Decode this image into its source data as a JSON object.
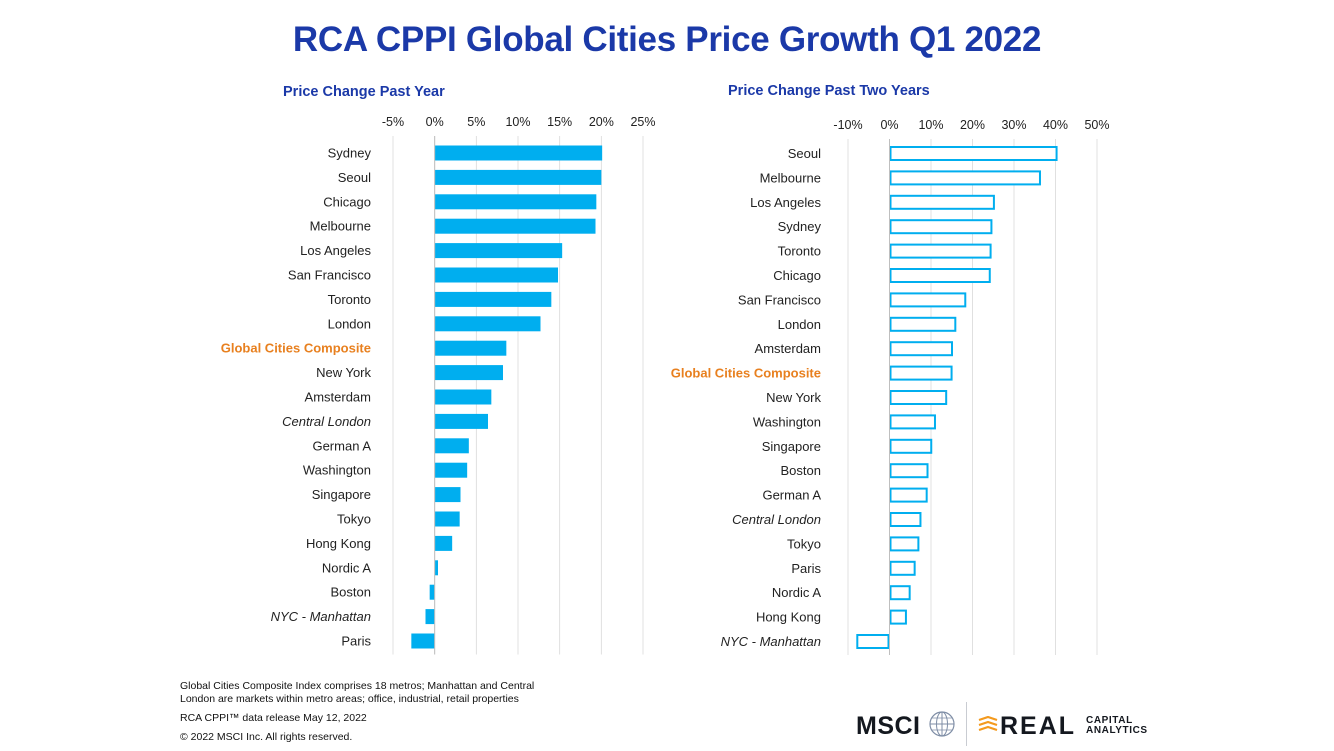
{
  "title": "RCA CPPI Global Cities Price Growth Q1 2022",
  "colors": {
    "title": "#1b39a8",
    "bar": "#00aeef",
    "highlight": "#e8801f",
    "grid": "#d9d9d9"
  },
  "chart_data": [
    {
      "type": "bar",
      "orientation": "horizontal",
      "style": "filled",
      "title": "Price Change Past Year",
      "xlim": [
        -5,
        25
      ],
      "xticks": [
        -5,
        0,
        5,
        10,
        15,
        20,
        25
      ],
      "tick_labels": [
        "-5%",
        "0%",
        "5%",
        "10%",
        "15%",
        "20%",
        "25%"
      ],
      "highlight_category": "Global Cities Composite",
      "italic_categories": [
        "Central London",
        "NYC - Manhattan"
      ],
      "categories": [
        "Sydney",
        "Seoul",
        "Chicago",
        "Melbourne",
        "Los Angeles",
        "San Francisco",
        "Toronto",
        "London",
        "Global Cities Composite",
        "New York",
        "Amsterdam",
        "Central London",
        "German A",
        "Washington",
        "Singapore",
        "Tokyo",
        "Hong Kong",
        "Nordic A",
        "Boston",
        "NYC - Manhattan",
        "Paris"
      ],
      "values": [
        20.1,
        20.0,
        19.4,
        19.3,
        15.3,
        14.8,
        14.0,
        12.7,
        8.6,
        8.2,
        6.8,
        6.4,
        4.1,
        3.9,
        3.1,
        3.0,
        2.1,
        0.4,
        -0.6,
        -1.1,
        -2.8
      ]
    },
    {
      "type": "bar",
      "orientation": "horizontal",
      "style": "outline",
      "title": "Price Change Past Two Years",
      "xlim": [
        -10,
        50
      ],
      "xticks": [
        -10,
        0,
        10,
        20,
        30,
        40,
        50
      ],
      "tick_labels": [
        "-10%",
        "0%",
        "10%",
        "20%",
        "30%",
        "40%",
        "50%"
      ],
      "highlight_category": "Global Cities Composite",
      "italic_categories": [
        "Central London",
        "NYC - Manhattan"
      ],
      "categories": [
        "Seoul",
        "Melbourne",
        "Los Angeles",
        "Sydney",
        "Toronto",
        "Chicago",
        "San Francisco",
        "London",
        "Amsterdam",
        "Global Cities Composite",
        "New York",
        "Washington",
        "Singapore",
        "Boston",
        "German A",
        "Central London",
        "Tokyo",
        "Paris",
        "Nordic A",
        "Hong Kong",
        "NYC - Manhattan"
      ],
      "values": [
        40.5,
        36.5,
        25.4,
        24.8,
        24.6,
        24.4,
        18.5,
        16.1,
        15.3,
        15.2,
        13.9,
        11.2,
        10.3,
        9.4,
        9.2,
        7.7,
        7.2,
        6.3,
        5.1,
        4.2,
        -8.0
      ]
    }
  ],
  "footnotes": {
    "line1": "Global Cities Composite Index comprises 18 metros; Manhattan and Central London are markets within metro areas; office, industrial, retail properties",
    "line2": "RCA CPPI™ data release May 12, 2022",
    "line3": "© 2022 MSCI Inc. All rights reserved."
  },
  "logos": {
    "msci": "MSCI",
    "rca_main": "REAL",
    "rca_line1": "CAPITAL",
    "rca_line2": "ANALYTICS",
    "msci_icon": "globe-icon",
    "rca_icon": "rca-mark-icon"
  }
}
